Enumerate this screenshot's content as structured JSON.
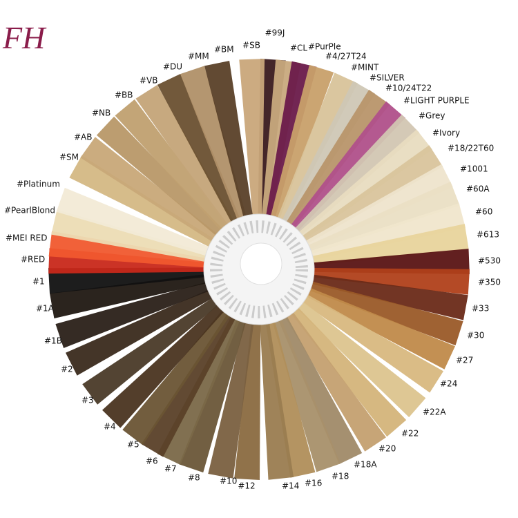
{
  "logo": "FH",
  "labels": [
    "#99J",
    "#SB",
    "#CL",
    "#PurPle",
    "#4/27T24",
    "#MINT",
    "#SILVER",
    "#10/24T22",
    "#LIGHT PURPLE",
    "#Grey",
    "#Ivory",
    "#18/22T60",
    "#1001",
    "#60A",
    "#60",
    "#613",
    "#530",
    "#350",
    "#33",
    "#30",
    "#27",
    "#24",
    "#22A",
    "#22",
    "#20",
    "#18A",
    "#18",
    "#16",
    "#14",
    "#12",
    "#10",
    "#8",
    "#7",
    "#6",
    "#5",
    "#4",
    "#3",
    "#2",
    "#1B",
    "#1A",
    "#1",
    "#RED",
    "#MEI RED",
    "#PearlBlond",
    "#Platinum",
    "#SM",
    "#AB",
    "#NB",
    "#BB",
    "#VB",
    "#DU",
    "#MM",
    "#BM"
  ]
}
